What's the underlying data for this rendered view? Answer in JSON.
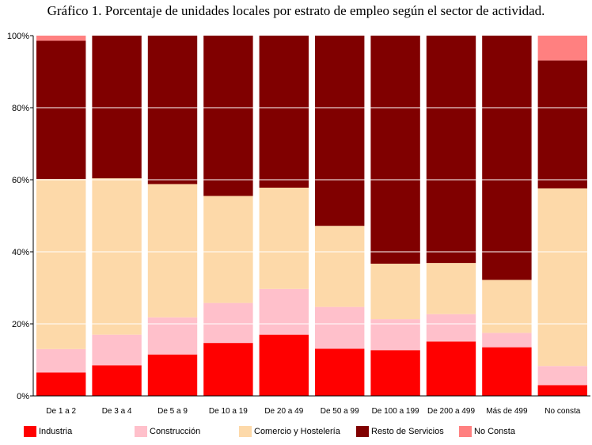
{
  "title": "Gráfico 1. Porcentaje de unidades locales por estrato de empleo según el sector de actividad.",
  "chart_data": {
    "type": "bar",
    "stacked": true,
    "categories": [
      "De 1 a 2",
      "De 3 a 4",
      "De 5 a 9",
      "De 10 a 19",
      "De 20 a 49",
      "De 50 a 99",
      "De 100 a 199",
      "De 200 a 499",
      "Más de 499",
      "No consta"
    ],
    "series": [
      {
        "name": "Industria",
        "color": "#ff0000",
        "values": [
          6.5,
          8.5,
          11.5,
          14.7,
          17.0,
          13.1,
          12.7,
          15.1,
          13.5,
          3.0
        ]
      },
      {
        "name": "Construcción",
        "color": "#ffc0cb",
        "values": [
          6.5,
          8.5,
          10.3,
          11.1,
          12.7,
          11.6,
          8.6,
          7.6,
          4.0,
          5.3
        ]
      },
      {
        "name": "Comercio y Hostelería",
        "color": "#fdd9a9",
        "values": [
          47.2,
          43.4,
          37.0,
          29.7,
          28.1,
          22.5,
          15.4,
          14.2,
          14.7,
          49.3
        ]
      },
      {
        "name": "Resto de Servicios",
        "color": "#800000",
        "values": [
          38.4,
          39.6,
          41.2,
          44.5,
          42.2,
          52.8,
          63.3,
          63.1,
          67.8,
          35.5
        ]
      },
      {
        "name": "No Consta",
        "color": "#ff8080",
        "values": [
          1.4,
          0,
          0,
          0,
          0,
          0,
          0,
          0,
          0,
          6.9
        ]
      }
    ],
    "y_ticks": [
      "0%",
      "20%",
      "40%",
      "60%",
      "80%",
      "100%"
    ],
    "ylim": [
      0,
      100
    ],
    "grid": true,
    "legend_position": "bottom"
  }
}
